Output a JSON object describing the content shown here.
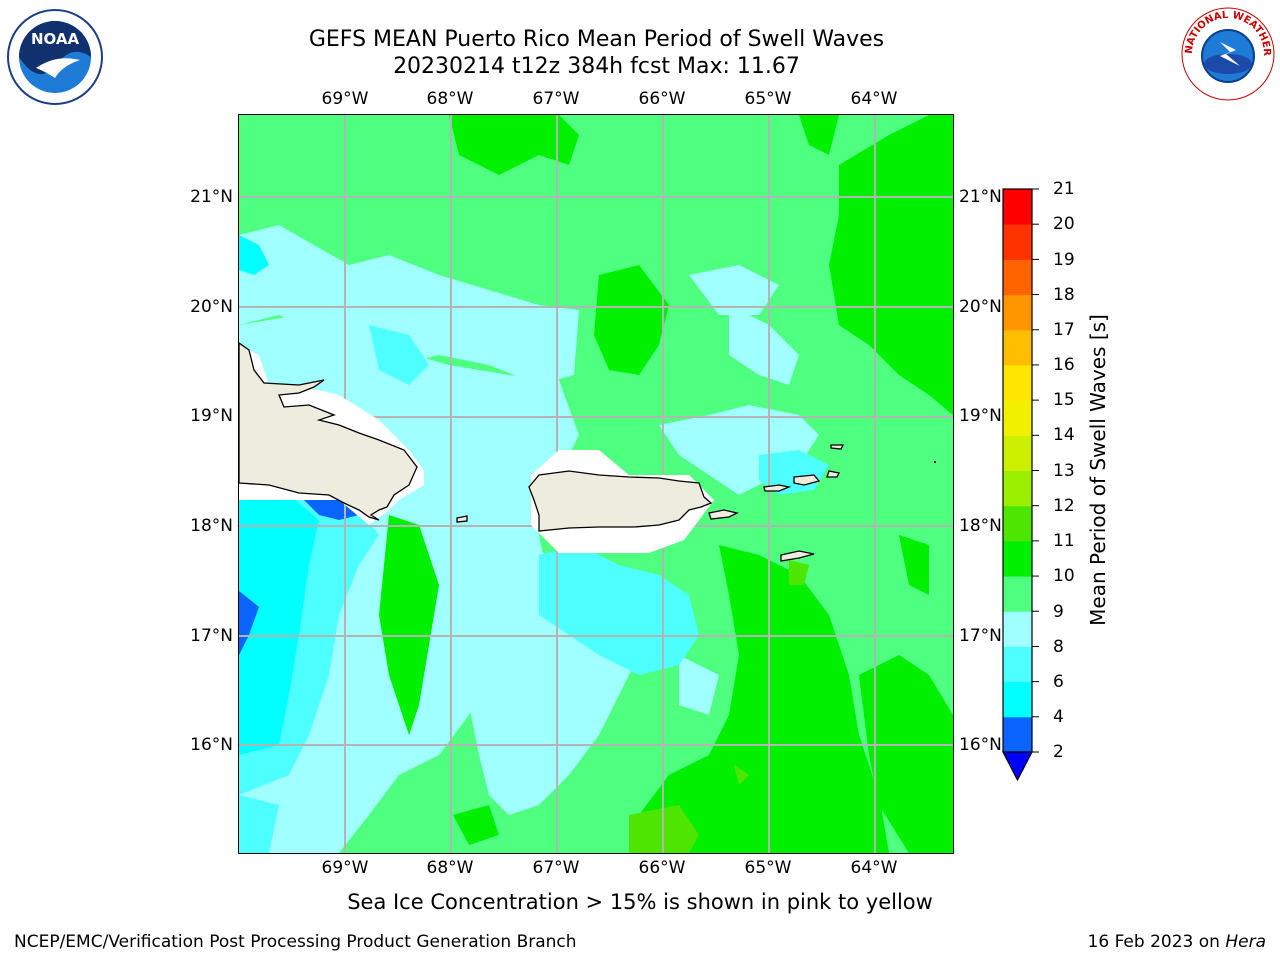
{
  "title": {
    "line1": "GEFS MEAN Puerto Rico Mean Period of Swell Waves",
    "line2": "20230214 t12z 384h fcst   Max: 11.67"
  },
  "map": {
    "lon_labels": [
      "69°W",
      "68°W",
      "67°W",
      "66°W",
      "65°W",
      "64°W"
    ],
    "lat_labels": [
      "21°N",
      "20°N",
      "19°N",
      "18°N",
      "17°N",
      "16°N"
    ],
    "lon_range": [
      -70.0,
      -63.25
    ],
    "lat_range": [
      15.0,
      21.75
    ],
    "grid": true,
    "land_color": "#eeecdf",
    "ocean_field": "Mean Period of Swell Waves"
  },
  "colorbar": {
    "label": "Mean Period of Swell Waves [s]",
    "ticks": [
      "2",
      "4",
      "6",
      "8",
      "9",
      "10",
      "11",
      "12",
      "13",
      "14",
      "15",
      "16",
      "17",
      "18",
      "19",
      "20",
      "21"
    ],
    "colors": [
      "#0000ff",
      "#0a64ff",
      "#00ffff",
      "#4dffff",
      "#a0ffff",
      "#4fff80",
      "#00f000",
      "#4ee600",
      "#9af000",
      "#cdf000",
      "#f0f000",
      "#ffe600",
      "#ffbe00",
      "#ff9600",
      "#ff6400",
      "#ff3200",
      "#ff0000"
    ],
    "extend_color": "#0000ff"
  },
  "caption": "Sea Ice Concentration > 15% is shown in pink to yellow",
  "footer": {
    "left": "NCEP/EMC/Verification Post Processing Product Generation Branch",
    "right_prefix": "16 Feb 2023 on ",
    "right_host": "Hera"
  },
  "logos": {
    "noaa_text": "NOAA",
    "nws_text": "NATIONAL WEATHER SERVICE"
  }
}
